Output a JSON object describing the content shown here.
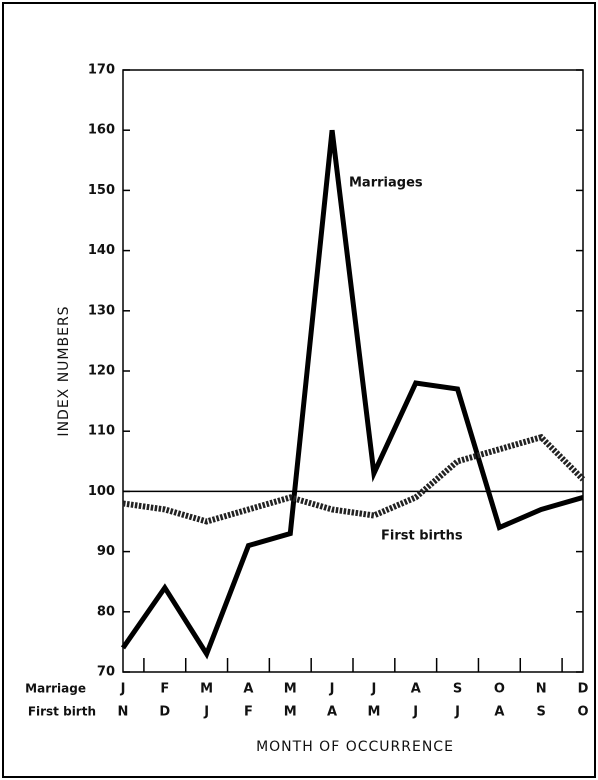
{
  "chart_data": {
    "type": "line",
    "y_label": "INDEX NUMBERS",
    "x_label": "MONTH OF OCCURRENCE",
    "category_row_labels": [
      "Marriage",
      "First birth"
    ],
    "categories": [
      "J",
      "F",
      "M",
      "A",
      "M",
      "J",
      "J",
      "A",
      "S",
      "O",
      "N",
      "D"
    ],
    "secondary_categories": [
      "N",
      "D",
      "J",
      "F",
      "M",
      "A",
      "M",
      "J",
      "J",
      "A",
      "S",
      "O"
    ],
    "series": [
      {
        "name": "Marriages",
        "color": "#000000",
        "style": "solid",
        "values": [
          74,
          84,
          73,
          91,
          93,
          160,
          103,
          118,
          117,
          94,
          97,
          99
        ]
      },
      {
        "name": "First births",
        "color": "#222222",
        "style": "dotted",
        "values": [
          98,
          97,
          95,
          97,
          99,
          97,
          96,
          99,
          105,
          107,
          109,
          102
        ]
      }
    ],
    "reference_line": 100,
    "ylim": [
      70,
      170
    ],
    "yticks": [
      70,
      80,
      90,
      100,
      110,
      120,
      130,
      140,
      150,
      160,
      170
    ]
  }
}
